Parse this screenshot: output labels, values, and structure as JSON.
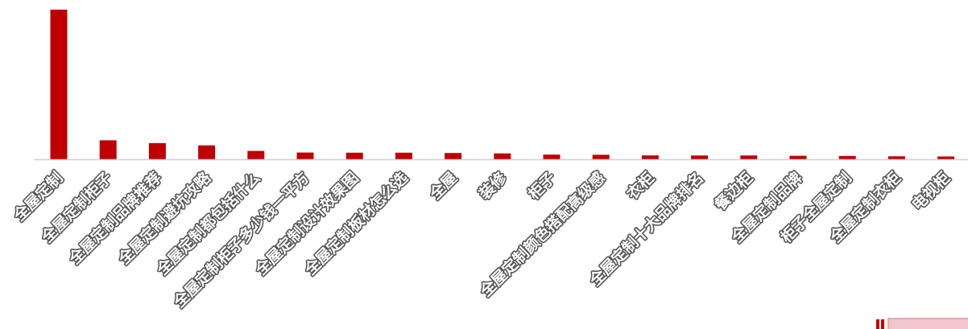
{
  "chart_data": {
    "type": "bar",
    "title": "",
    "xlabel": "",
    "ylabel": "",
    "ylim": [
      0,
      100
    ],
    "grid": false,
    "legend": "none",
    "bar_color": "#C00000",
    "axis_color": "#C9CFE3",
    "categories": [
      "全屋定制",
      "全屋定制柜子",
      "全屋定制品牌推荐",
      "全屋定制避坑攻略",
      "全屋定制都包括什么",
      "全屋定制柜子多少钱一平方",
      "全屋定制设计效果图",
      "全屋定制板材怎么选",
      "全屋",
      "装修",
      "柜子",
      "全屋定制颜色搭配高级感",
      "衣柜",
      "全屋定制十大品牌排名",
      "餐边柜",
      "全屋定制品牌",
      "柜子全屋定制",
      "全屋定制衣柜",
      "电视柜"
    ],
    "values": [
      100,
      12.7,
      10.8,
      9.3,
      5.6,
      4.5,
      4.4,
      4.4,
      4.2,
      3.9,
      3.1,
      3.0,
      2.6,
      2.5,
      2.5,
      2.3,
      2.2,
      2.0,
      1.9
    ]
  }
}
